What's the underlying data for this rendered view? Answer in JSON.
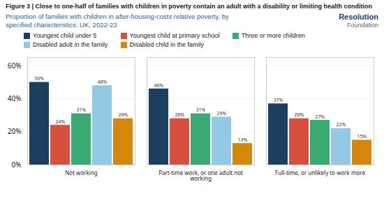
{
  "chart_data": {
    "type": "bar",
    "title": "Figure 3 | Close to one-half of families with children in poverty contain an adult with a disability or limiting health condition",
    "subtitle": "Proportion of families with children in after-housing-costs relative poverty, by\nspecified characteristics: UK, 2022-23",
    "annotations": [
      "Resolution",
      "Foundation"
    ],
    "categories": [
      "Not working",
      "Part-time work, or one adult not\nworking",
      "Full-time, or unlikely to work more"
    ],
    "series": [
      {
        "name": "Youngest child under 5",
        "color": "#1b3f5e",
        "values": [
          50,
          46,
          37
        ],
        "value_labels": [
          "50%",
          "46%",
          "37%"
        ]
      },
      {
        "name": "Youngest child at primary school",
        "color": "#d94f3d",
        "values": [
          24,
          28,
          28
        ],
        "value_labels": [
          "24%",
          "28%",
          "28%"
        ]
      },
      {
        "name": "Three or more children",
        "color": "#3aaa72",
        "values": [
          31,
          31,
          27
        ],
        "value_labels": [
          "31%",
          "31%",
          "27%"
        ]
      },
      {
        "name": "Disabled adult in the family",
        "color": "#92c9e4",
        "values": [
          48,
          29,
          22
        ],
        "value_labels": [
          "48%",
          "29%",
          "22%"
        ]
      },
      {
        "name": "Disabled child in the family",
        "color": "#d4870a",
        "values": [
          28,
          13,
          15
        ],
        "value_labels": [
          "28%",
          "13%",
          "15%"
        ]
      }
    ],
    "ylim": [
      0,
      65
    ],
    "yticks": [
      {
        "value": 0,
        "label": "0%"
      },
      {
        "value": 20,
        "label": "20%"
      },
      {
        "value": 40,
        "label": "40%"
      },
      {
        "value": 60,
        "label": "60%"
      }
    ],
    "grid": true,
    "legend": "top",
    "data_labels": true
  }
}
